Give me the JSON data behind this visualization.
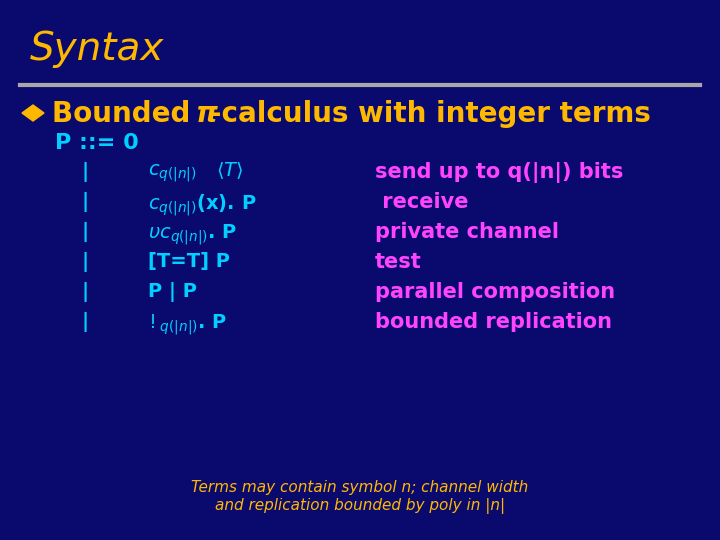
{
  "bg_color": "#0A0A6E",
  "title": "Syntax",
  "title_color": "#FFB800",
  "title_fontsize": 28,
  "separator_color": "#A0A0A0",
  "bullet_color": "#FFB800",
  "cyan_color": "#00CFFF",
  "magenta_color": "#FF44FF",
  "yellow_color": "#FFB800",
  "footer_fontsize": 11,
  "footer_line1": "Terms may contain symbol n; channel width",
  "footer_line2": "and replication bounded by poly in |n|"
}
